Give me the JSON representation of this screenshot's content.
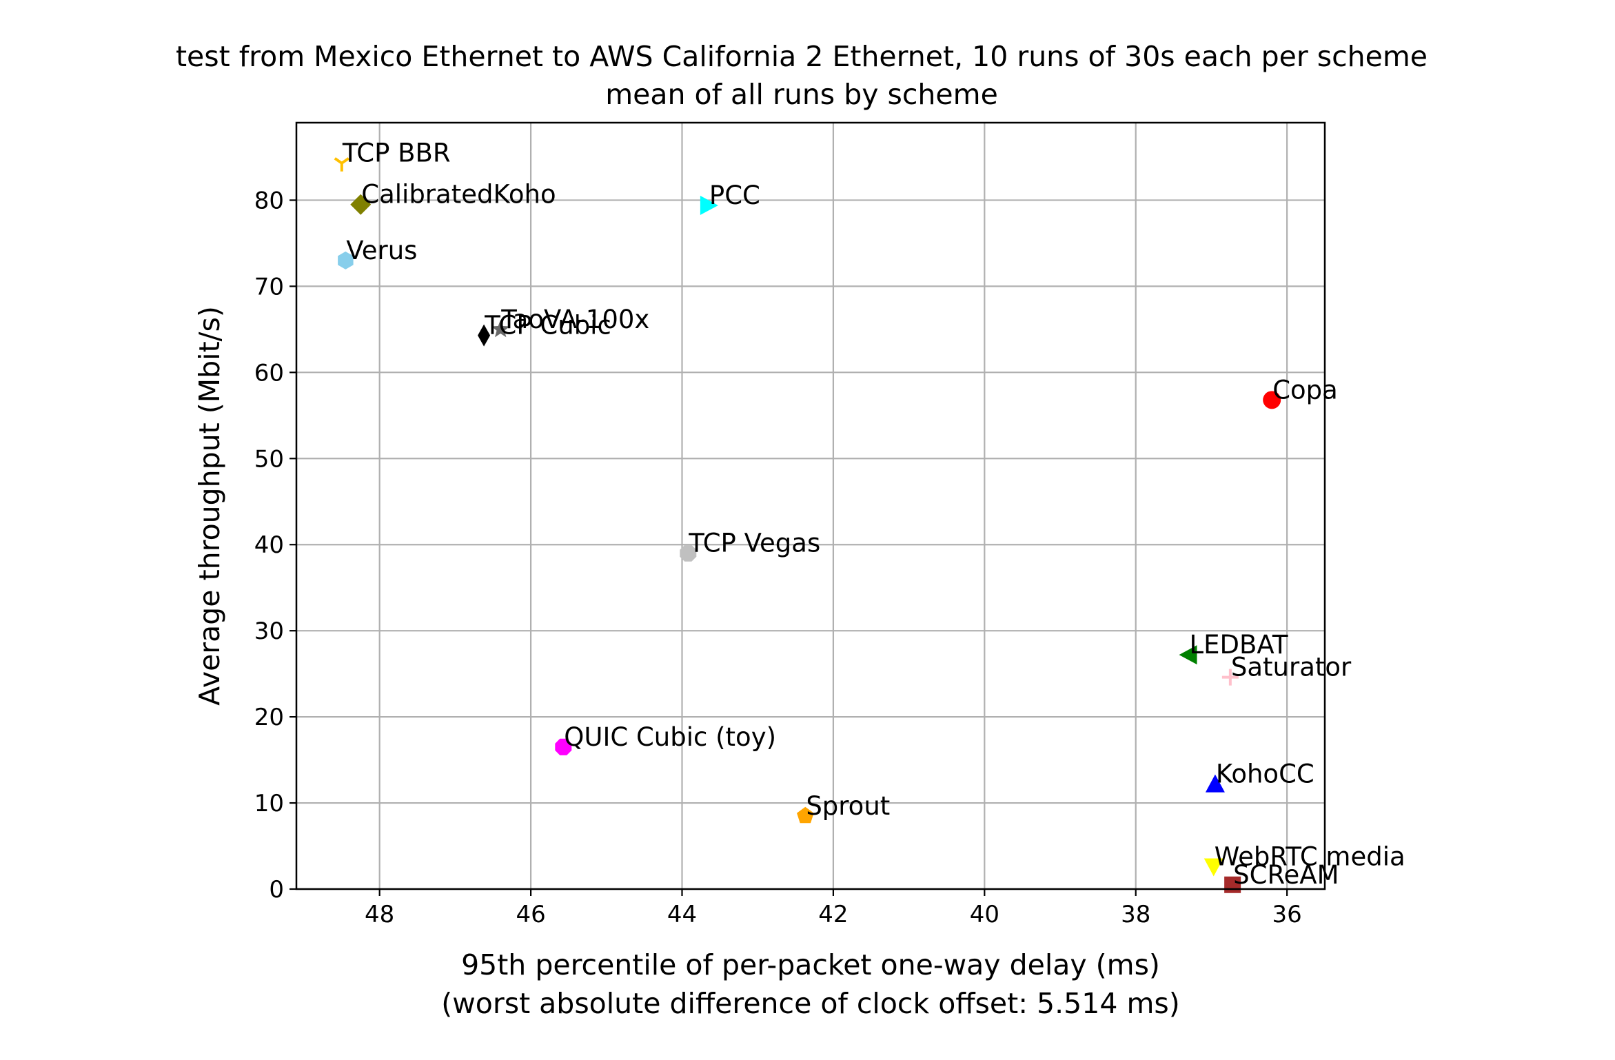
{
  "chart_data": {
    "type": "scatter",
    "title": "test from Mexico Ethernet to AWS California 2 Ethernet, 10 runs of 30s each per scheme",
    "subtitle": "mean of all runs by scheme",
    "xlabel": "95th percentile of per-packet one-way delay (ms)",
    "xlabel2": "(worst absolute difference of clock offset: 5.514 ms)",
    "ylabel": "Average throughput (Mbit/s)",
    "xlim": [
      49.1,
      35.5
    ],
    "x_inverted": true,
    "ylim": [
      0,
      89
    ],
    "xticks": [
      48,
      46,
      44,
      42,
      40,
      38,
      36
    ],
    "yticks": [
      0,
      10,
      20,
      30,
      40,
      50,
      60,
      70,
      80
    ],
    "grid": true,
    "points": [
      {
        "name": "TCP BBR",
        "x": 48.5,
        "y": 84.3,
        "color": "#ffc000",
        "marker": "tri_down"
      },
      {
        "name": "CalibratedKoho",
        "x": 48.25,
        "y": 79.5,
        "color": "#808000",
        "marker": "diamond"
      },
      {
        "name": "PCC",
        "x": 43.65,
        "y": 79.4,
        "color": "#00ffff",
        "marker": "triangle_right"
      },
      {
        "name": "Verus",
        "x": 48.45,
        "y": 73.0,
        "color": "#87ceeb",
        "marker": "hexagon"
      },
      {
        "name": "TaoVA-100x",
        "x": 46.4,
        "y": 65.0,
        "color": "#696969",
        "marker": "star"
      },
      {
        "name": "TCP Cubic",
        "x": 46.62,
        "y": 64.3,
        "color": "#000000",
        "marker": "thin_diamond"
      },
      {
        "name": "Copa",
        "x": 36.2,
        "y": 56.8,
        "color": "#ff0000",
        "marker": "circle"
      },
      {
        "name": "TCP Vegas",
        "x": 43.92,
        "y": 39.0,
        "color": "#c0c0c0",
        "marker": "octagon"
      },
      {
        "name": "LEDBAT",
        "x": 37.3,
        "y": 27.2,
        "color": "#008000",
        "marker": "triangle_left"
      },
      {
        "name": "Saturator",
        "x": 36.75,
        "y": 24.6,
        "color": "#ffc0cb",
        "marker": "plus"
      },
      {
        "name": "QUIC Cubic (toy)",
        "x": 45.57,
        "y": 16.5,
        "color": "#ff00ff",
        "marker": "octagon"
      },
      {
        "name": "KohoCC",
        "x": 36.95,
        "y": 12.2,
        "color": "#0000ff",
        "marker": "triangle_up"
      },
      {
        "name": "Sprout",
        "x": 42.37,
        "y": 8.5,
        "color": "#ffa500",
        "marker": "pentagon"
      },
      {
        "name": "WebRTC media",
        "x": 36.97,
        "y": 2.6,
        "color": "#ffff00",
        "marker": "triangle_down"
      },
      {
        "name": "SCReAM",
        "x": 36.72,
        "y": 0.5,
        "color": "#a52a2a",
        "marker": "square"
      }
    ]
  }
}
